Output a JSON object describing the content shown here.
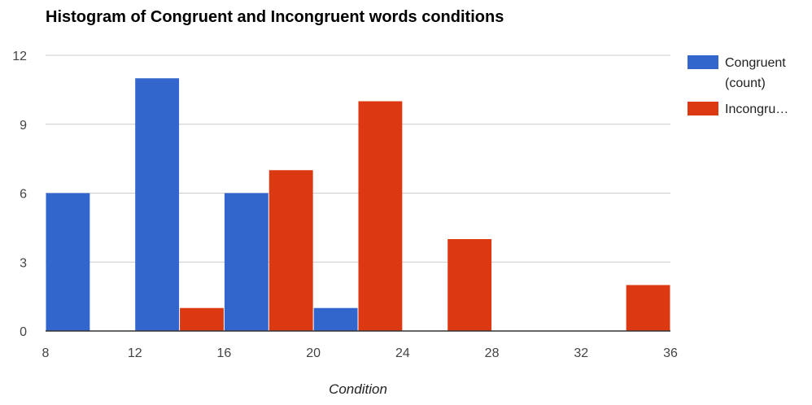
{
  "chart_data": {
    "type": "bar",
    "title": "Histogram of Congruent and Incongruent words conditions",
    "xlabel": "Condition",
    "ylabel": "",
    "xlim": [
      8,
      36
    ],
    "ylim": [
      0,
      12
    ],
    "x_ticks": [
      8,
      12,
      16,
      20,
      24,
      28,
      32,
      36
    ],
    "y_ticks": [
      0,
      3,
      6,
      9,
      12
    ],
    "bin_width": 2,
    "grid": true,
    "legend_position": "right",
    "series": [
      {
        "name": "Congruent (count)",
        "legend_lines": [
          "Congruent",
          "(count)"
        ],
        "color": "#3366cc",
        "bins": [
          {
            "x0": 8,
            "x1": 10,
            "count": 6
          },
          {
            "x0": 12,
            "x1": 14,
            "count": 11
          },
          {
            "x0": 16,
            "x1": 18,
            "count": 6
          },
          {
            "x0": 20,
            "x1": 22,
            "count": 1
          }
        ]
      },
      {
        "name": "Incongruent (count)",
        "legend_lines": [
          "Incongru…"
        ],
        "color": "#dc3912",
        "bins": [
          {
            "x0": 14,
            "x1": 16,
            "count": 1
          },
          {
            "x0": 18,
            "x1": 20,
            "count": 7
          },
          {
            "x0": 22,
            "x1": 24,
            "count": 10
          },
          {
            "x0": 26,
            "x1": 28,
            "count": 4
          },
          {
            "x0": 34,
            "x1": 36,
            "count": 2
          }
        ]
      }
    ]
  }
}
